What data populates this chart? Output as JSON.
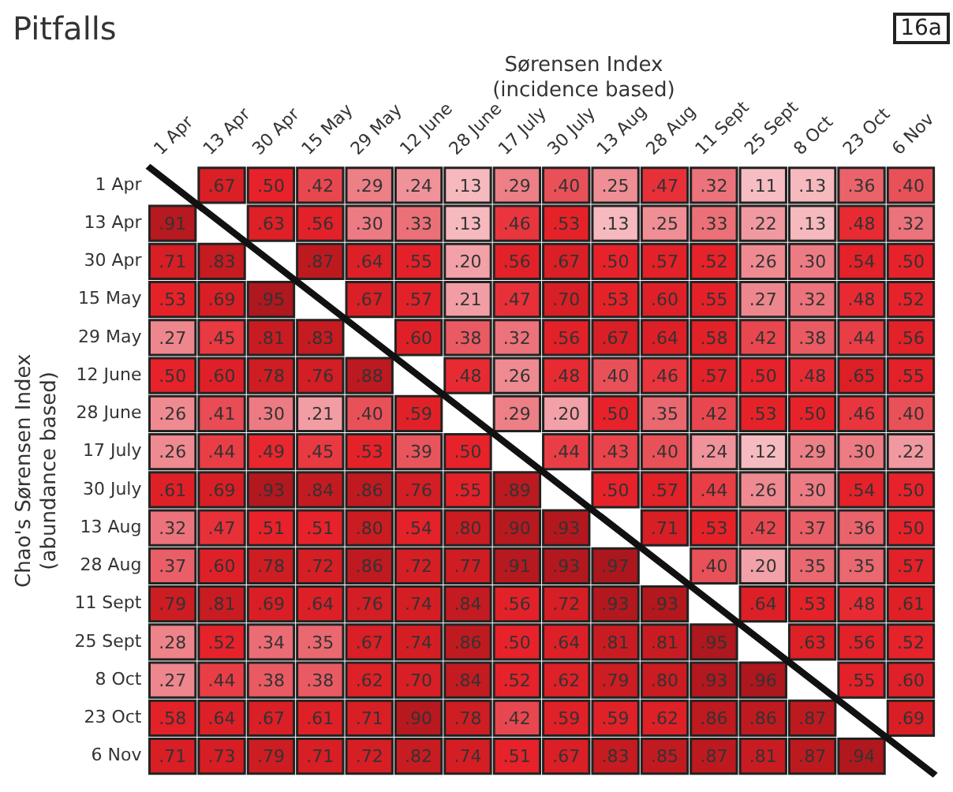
{
  "chart_data": {
    "type": "heatmap",
    "title": "Pitfalls",
    "xlabel": "Sørensen Index\n(incidence based)",
    "ylabel": "Chao's Sørensen Index\n(abundance based)",
    "annotations": [
      "16a"
    ],
    "categories": [
      "1 Apr",
      "13 Apr",
      "30 Apr",
      "15 May",
      "29 May",
      "12 June",
      "28 June",
      "17 July",
      "30 July",
      "13 Aug",
      "28 Aug",
      "11 Sept",
      "25 Sept",
      "8 Oct",
      "23 Oct",
      "6 Nov"
    ],
    "y_categories": [
      "1 Apr",
      "13 Apr",
      "30 Apr",
      "15 May",
      "29 May",
      "12 June",
      "28 June",
      "17 July",
      "30 July",
      "13 Aug",
      "28 Aug",
      "11 Sept",
      "25 Sept",
      "8 Oct",
      "23 Oct",
      "6 Nov"
    ],
    "cells": [
      [
        null,
        0.67,
        0.5,
        0.42,
        0.29,
        0.24,
        0.13,
        0.29,
        0.4,
        0.25,
        0.47,
        0.32,
        0.11,
        0.13,
        0.36,
        0.4
      ],
      [
        0.91,
        null,
        0.63,
        0.56,
        0.3,
        0.33,
        0.13,
        0.46,
        0.53,
        0.13,
        0.25,
        0.33,
        0.22,
        0.13,
        0.48,
        0.32
      ],
      [
        0.71,
        0.83,
        null,
        0.87,
        0.64,
        0.55,
        0.2,
        0.56,
        0.67,
        0.5,
        0.57,
        0.52,
        0.26,
        0.3,
        0.54,
        0.5
      ],
      [
        0.53,
        0.69,
        0.95,
        null,
        0.67,
        0.57,
        0.21,
        0.47,
        0.7,
        0.53,
        0.6,
        0.55,
        0.27,
        0.32,
        0.48,
        0.52
      ],
      [
        0.27,
        0.45,
        0.81,
        0.83,
        null,
        0.6,
        0.38,
        0.32,
        0.56,
        0.67,
        0.64,
        0.58,
        0.42,
        0.38,
        0.44,
        0.56
      ],
      [
        0.5,
        0.6,
        0.78,
        0.76,
        0.88,
        null,
        0.48,
        0.26,
        0.48,
        0.4,
        0.46,
        0.57,
        0.5,
        0.48,
        0.65,
        0.55
      ],
      [
        0.26,
        0.41,
        0.3,
        0.21,
        0.4,
        0.59,
        null,
        0.29,
        0.2,
        0.5,
        0.35,
        0.42,
        0.53,
        0.5,
        0.46,
        0.4
      ],
      [
        0.26,
        0.44,
        0.49,
        0.45,
        0.53,
        0.39,
        0.5,
        null,
        0.44,
        0.43,
        0.4,
        0.24,
        0.12,
        0.29,
        0.3,
        0.22
      ],
      [
        0.61,
        0.69,
        0.93,
        0.84,
        0.86,
        0.76,
        0.55,
        0.89,
        null,
        0.5,
        0.57,
        0.44,
        0.26,
        0.3,
        0.54,
        0.5
      ],
      [
        0.32,
        0.47,
        0.51,
        0.51,
        0.8,
        0.54,
        0.8,
        0.9,
        0.93,
        null,
        0.71,
        0.53,
        0.42,
        0.37,
        0.36,
        0.5
      ],
      [
        0.37,
        0.6,
        0.78,
        0.72,
        0.86,
        0.72,
        0.77,
        0.91,
        0.93,
        0.97,
        null,
        0.4,
        0.2,
        0.35,
        0.35,
        0.57
      ],
      [
        0.79,
        0.81,
        0.69,
        0.64,
        0.76,
        0.74,
        0.84,
        0.56,
        0.72,
        0.93,
        0.93,
        null,
        0.64,
        0.53,
        0.48,
        0.61
      ],
      [
        0.28,
        0.52,
        0.34,
        0.35,
        0.67,
        0.74,
        0.86,
        0.5,
        0.64,
        0.81,
        0.81,
        0.95,
        null,
        0.63,
        0.56,
        0.52
      ],
      [
        0.27,
        0.44,
        0.38,
        0.38,
        0.62,
        0.7,
        0.84,
        0.52,
        0.62,
        0.79,
        0.8,
        0.93,
        0.96,
        null,
        0.55,
        0.6
      ],
      [
        0.58,
        0.64,
        0.67,
        0.61,
        0.71,
        0.9,
        0.78,
        0.42,
        0.59,
        0.59,
        0.62,
        0.86,
        0.86,
        0.87,
        null,
        0.69
      ],
      [
        0.71,
        0.73,
        0.79,
        0.71,
        0.72,
        0.82,
        0.74,
        0.51,
        0.67,
        0.83,
        0.85,
        0.87,
        0.81,
        0.87,
        0.94,
        null
      ]
    ],
    "cell_labels": [
      [
        null,
        ".67",
        ".50",
        ".42",
        ".29",
        ".24",
        ".13",
        ".29",
        ".40",
        ".25",
        ".47",
        ".32",
        ".11",
        ".13",
        ".36",
        ".40"
      ],
      [
        ".91",
        null,
        ".63",
        ".56",
        ".30",
        ".33",
        ".13",
        ".46",
        ".53",
        ".13",
        ".25",
        ".33",
        ".22",
        ".13",
        ".48",
        ".32"
      ],
      [
        ".71",
        ".83",
        null,
        ".87",
        ".64",
        ".55",
        ".20",
        ".56",
        ".67",
        ".50",
        ".57",
        ".52",
        ".26",
        ".30",
        ".54",
        ".50"
      ],
      [
        ".53",
        ".69",
        ".95",
        null,
        ".67",
        ".57",
        ".21",
        ".47",
        ".70",
        ".53",
        ".60",
        ".55",
        ".27",
        ".32",
        ".48",
        ".52"
      ],
      [
        ".27",
        ".45",
        ".81",
        ".83",
        null,
        ".60",
        ".38",
        ".32",
        ".56",
        ".67",
        ".64",
        ".58",
        ".42",
        ".38",
        ".44",
        ".56"
      ],
      [
        ".50",
        ".60",
        ".78",
        ".76",
        ".88",
        null,
        ".48",
        ".26",
        ".48",
        ".40",
        ".46",
        ".57",
        ".50",
        ".48",
        ".65",
        ".55"
      ],
      [
        ".26",
        ".41",
        ".30",
        ".21",
        ".40",
        ".59",
        null,
        ".29",
        ".20",
        ".50",
        ".35",
        ".42",
        ".53",
        ".50",
        ".46",
        ".40"
      ],
      [
        ".26",
        ".44",
        ".49",
        ".45",
        ".53",
        ".39",
        ".50",
        null,
        ".44",
        ".43",
        ".40",
        ".24",
        ".12",
        ".29",
        ".30",
        ".22"
      ],
      [
        ".61",
        ".69",
        ".93",
        ".84",
        ".86",
        ".76",
        ".55",
        ".89",
        null,
        ".50",
        ".57",
        ".44",
        ".26",
        ".30",
        ".54",
        ".50"
      ],
      [
        ".32",
        ".47",
        ".51",
        ".51",
        ".80",
        ".54",
        ".80",
        ".90",
        ".93",
        null,
        ".71",
        ".53",
        ".42",
        ".37",
        ".36",
        ".50"
      ],
      [
        ".37",
        ".60",
        ".78",
        ".72",
        ".86",
        ".72",
        ".77",
        ".91",
        ".93",
        ".97",
        null,
        ".40",
        ".20",
        ".35",
        ".35",
        ".57"
      ],
      [
        ".79",
        ".81",
        ".69",
        ".64",
        ".76",
        ".74",
        ".84",
        ".56",
        ".72",
        ".93",
        ".93",
        null,
        ".64",
        ".53",
        ".48",
        ".61"
      ],
      [
        ".28",
        ".52",
        ".34",
        ".35",
        ".67",
        ".74",
        ".86",
        ".50",
        ".64",
        ".81",
        ".81",
        ".95",
        null,
        ".63",
        ".56",
        ".52"
      ],
      [
        ".27",
        ".44",
        ".38",
        ".38",
        ".62",
        ".70",
        ".84",
        ".52",
        ".62",
        ".79",
        ".80",
        ".93",
        ".96",
        null,
        ".55",
        ".60"
      ],
      [
        ".58",
        ".64",
        ".67",
        ".61",
        ".71",
        ".90",
        ".78",
        ".42",
        ".59",
        ".59",
        ".62",
        ".86",
        ".86",
        ".87",
        null,
        ".69"
      ],
      [
        ".71",
        ".73",
        ".79",
        ".71",
        ".72",
        ".82",
        ".74",
        ".51",
        ".67",
        ".83",
        ".85",
        ".87",
        ".81",
        ".87",
        ".94",
        null
      ]
    ]
  }
}
